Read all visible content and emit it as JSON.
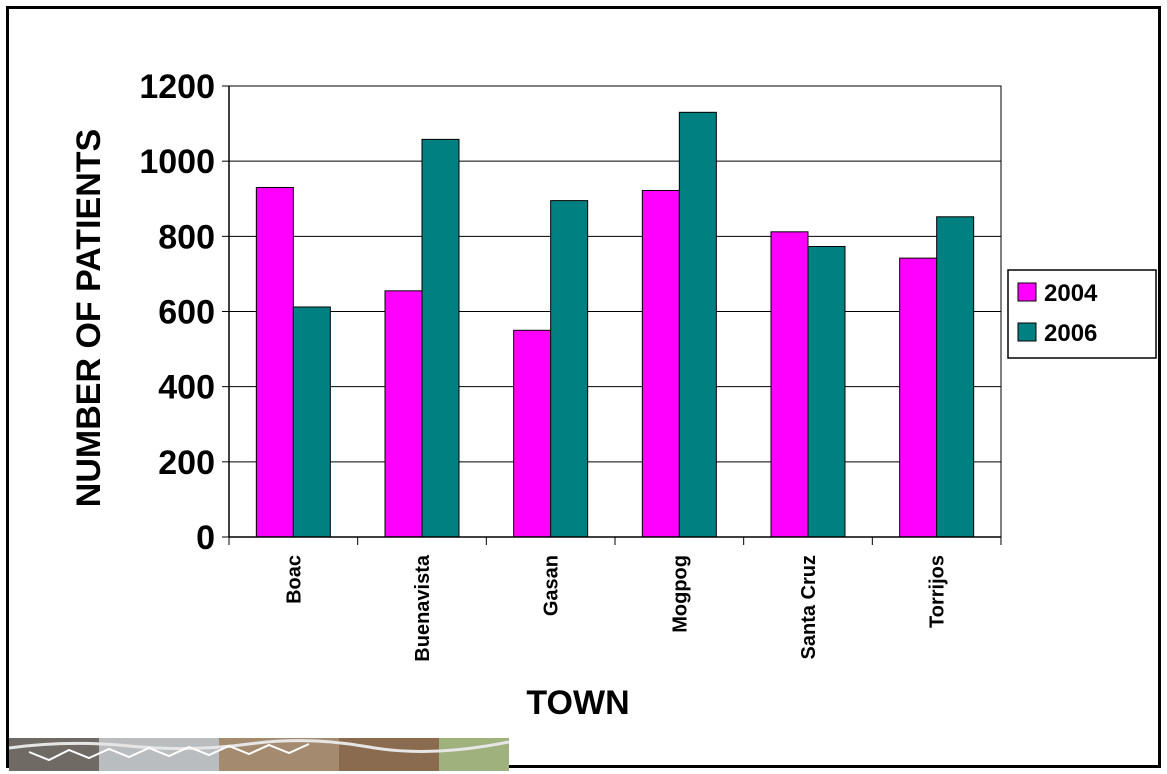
{
  "chart_data": {
    "type": "bar",
    "categories": [
      "Boac",
      "Buenavista",
      "Gasan",
      "Mogpog",
      "Santa Cruz",
      "Torrijos"
    ],
    "series": [
      {
        "name": "2004",
        "color": "#FF00FF",
        "values": [
          930,
          655,
          550,
          922,
          812,
          742
        ]
      },
      {
        "name": "2006",
        "color": "#008080",
        "values": [
          612,
          1058,
          895,
          1130,
          773,
          852
        ]
      }
    ],
    "title": "",
    "xlabel": "TOWN",
    "ylabel": "NUMBER OF PATIENTS",
    "ylim": [
      0,
      1200
    ],
    "yticks": [
      0,
      200,
      400,
      600,
      800,
      1000,
      1200
    ],
    "grid": true,
    "legend_position": "right"
  }
}
